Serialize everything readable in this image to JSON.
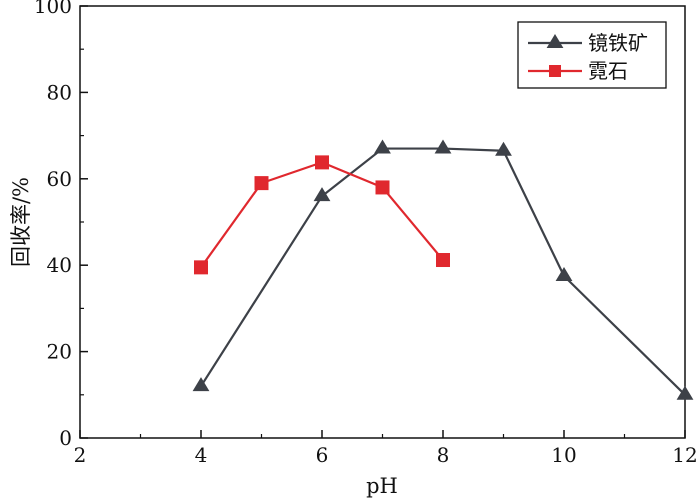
{
  "chart_data": {
    "type": "line",
    "xlabel": "pH",
    "ylabel": "回收率/%",
    "xlim": [
      2,
      12
    ],
    "ylim": [
      0,
      100
    ],
    "x_ticks": [
      2,
      4,
      6,
      8,
      10,
      12
    ],
    "y_ticks": [
      0,
      20,
      40,
      60,
      80,
      100
    ],
    "grid": false,
    "legend_position": "top-right",
    "series": [
      {
        "name": "镜铁矿",
        "marker": "triangle",
        "color": "#3d4148",
        "points": [
          {
            "x": 4,
            "y": 12
          },
          {
            "x": 6,
            "y": 56
          },
          {
            "x": 7,
            "y": 67
          },
          {
            "x": 8,
            "y": 67
          },
          {
            "x": 9,
            "y": 66.5
          },
          {
            "x": 10,
            "y": 37.5
          },
          {
            "x": 12,
            "y": 10
          }
        ]
      },
      {
        "name": "霓石",
        "marker": "square",
        "color": "#e0282e",
        "points": [
          {
            "x": 4,
            "y": 39.5
          },
          {
            "x": 5,
            "y": 59
          },
          {
            "x": 6,
            "y": 63.8
          },
          {
            "x": 7,
            "y": 58
          },
          {
            "x": 8,
            "y": 41.2
          }
        ]
      }
    ]
  }
}
